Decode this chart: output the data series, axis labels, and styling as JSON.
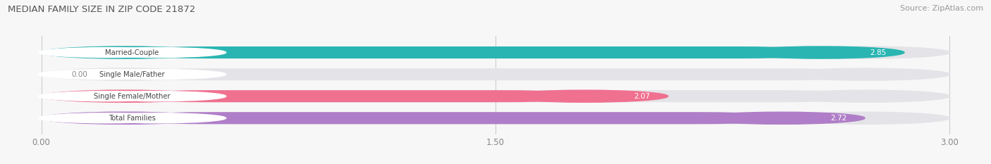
{
  "title": "MEDIAN FAMILY SIZE IN ZIP CODE 21872",
  "source": "Source: ZipAtlas.com",
  "categories": [
    "Married-Couple",
    "Single Male/Father",
    "Single Female/Mother",
    "Total Families"
  ],
  "values": [
    2.85,
    0.0,
    2.07,
    2.72
  ],
  "bar_colors": [
    "#2ab5b2",
    "#a8c0e8",
    "#f07090",
    "#b07ec8"
  ],
  "bar_bg_color": "#e4e4e8",
  "xlim": [
    0,
    3.0
  ],
  "xticks": [
    0.0,
    1.5,
    3.0
  ],
  "xtick_labels": [
    "0.00",
    "1.50",
    "3.00"
  ],
  "label_text_color": "#444444",
  "title_color": "#555555",
  "source_color": "#999999",
  "value_color_inside": "#ffffff",
  "value_color_outside": "#888888",
  "bar_height": 0.55,
  "figsize": [
    14.06,
    2.33
  ],
  "dpi": 100,
  "bg_color": "#f7f7f7"
}
